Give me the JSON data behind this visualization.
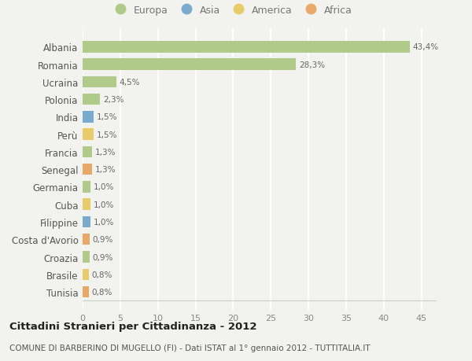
{
  "countries": [
    "Albania",
    "Romania",
    "Ucraina",
    "Polonia",
    "India",
    "Perù",
    "Francia",
    "Senegal",
    "Germania",
    "Cuba",
    "Filippine",
    "Costa d'Avorio",
    "Croazia",
    "Brasile",
    "Tunisia"
  ],
  "values": [
    43.4,
    28.3,
    4.5,
    2.3,
    1.5,
    1.5,
    1.3,
    1.3,
    1.0,
    1.0,
    1.0,
    0.9,
    0.9,
    0.8,
    0.8
  ],
  "labels": [
    "43,4%",
    "28,3%",
    "4,5%",
    "2,3%",
    "1,5%",
    "1,5%",
    "1,3%",
    "1,3%",
    "1,0%",
    "1,0%",
    "1,0%",
    "0,9%",
    "0,9%",
    "0,8%",
    "0,8%"
  ],
  "continent": [
    "Europa",
    "Europa",
    "Europa",
    "Europa",
    "Asia",
    "America",
    "Europa",
    "Africa",
    "Europa",
    "America",
    "Asia",
    "Africa",
    "Europa",
    "America",
    "Africa"
  ],
  "colors": {
    "Europa": "#b0ca8a",
    "Asia": "#7aaace",
    "America": "#e8cb6a",
    "Africa": "#e8a868"
  },
  "bg_color": "#f2f2ee",
  "grid_color": "#ffffff",
  "title": "Cittadini Stranieri per Cittadinanza - 2012",
  "subtitle": "COMUNE DI BARBERINO DI MUGELLO (FI) - Dati ISTAT al 1° gennaio 2012 - TUTTITALIA.IT",
  "xlim": [
    0,
    47
  ],
  "xticks": [
    0,
    5,
    10,
    15,
    20,
    25,
    30,
    35,
    40,
    45
  ],
  "legend_order": [
    "Europa",
    "Asia",
    "America",
    "Africa"
  ]
}
